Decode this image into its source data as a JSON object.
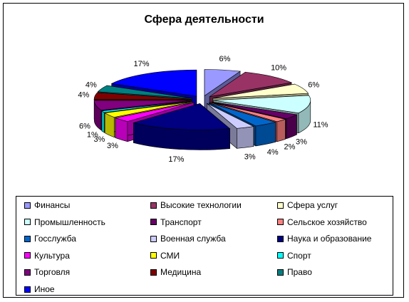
{
  "chart_data": {
    "type": "pie",
    "title": "Сфера деятельности",
    "legend_position": "bottom",
    "three_d": true,
    "slices": [
      {
        "name": "Финансы",
        "value": 6,
        "label": "6%",
        "color": "#9999FF"
      },
      {
        "name": "Высокие технологии",
        "value": 10,
        "label": "10%",
        "color": "#993366"
      },
      {
        "name": "Сфера услуг",
        "value": 6,
        "label": "6%",
        "color": "#FFFFCC"
      },
      {
        "name": "Промышленность",
        "value": 11,
        "label": "11%",
        "color": "#CCFFFF"
      },
      {
        "name": "Транспорт",
        "value": 3,
        "label": "3%",
        "color": "#660066"
      },
      {
        "name": "Сельское хозяйство",
        "value": 2,
        "label": "2%",
        "color": "#FF8080"
      },
      {
        "name": "Госслужба",
        "value": 4,
        "label": "4%",
        "color": "#0066CC"
      },
      {
        "name": "Военная служба",
        "value": 3,
        "label": "3%",
        "color": "#CCCCFF"
      },
      {
        "name": "Наука и образование",
        "value": 17,
        "label": "17%",
        "color": "#000080"
      },
      {
        "name": "Культура",
        "value": 3,
        "label": "3%",
        "color": "#FF00FF"
      },
      {
        "name": "СМИ",
        "value": 3,
        "label": "3%",
        "color": "#FFFF00"
      },
      {
        "name": "Спорт",
        "value": 1,
        "label": "1%",
        "color": "#00FFFF"
      },
      {
        "name": "Торговля",
        "value": 6,
        "label": "6%",
        "color": "#800080"
      },
      {
        "name": "Медицина",
        "value": 4,
        "label": "4%",
        "color": "#800000"
      },
      {
        "name": "Право",
        "value": 4,
        "label": "4%",
        "color": "#008080"
      },
      {
        "name": "Иное",
        "value": 17,
        "label": "17%",
        "color": "#0000FF"
      }
    ]
  }
}
